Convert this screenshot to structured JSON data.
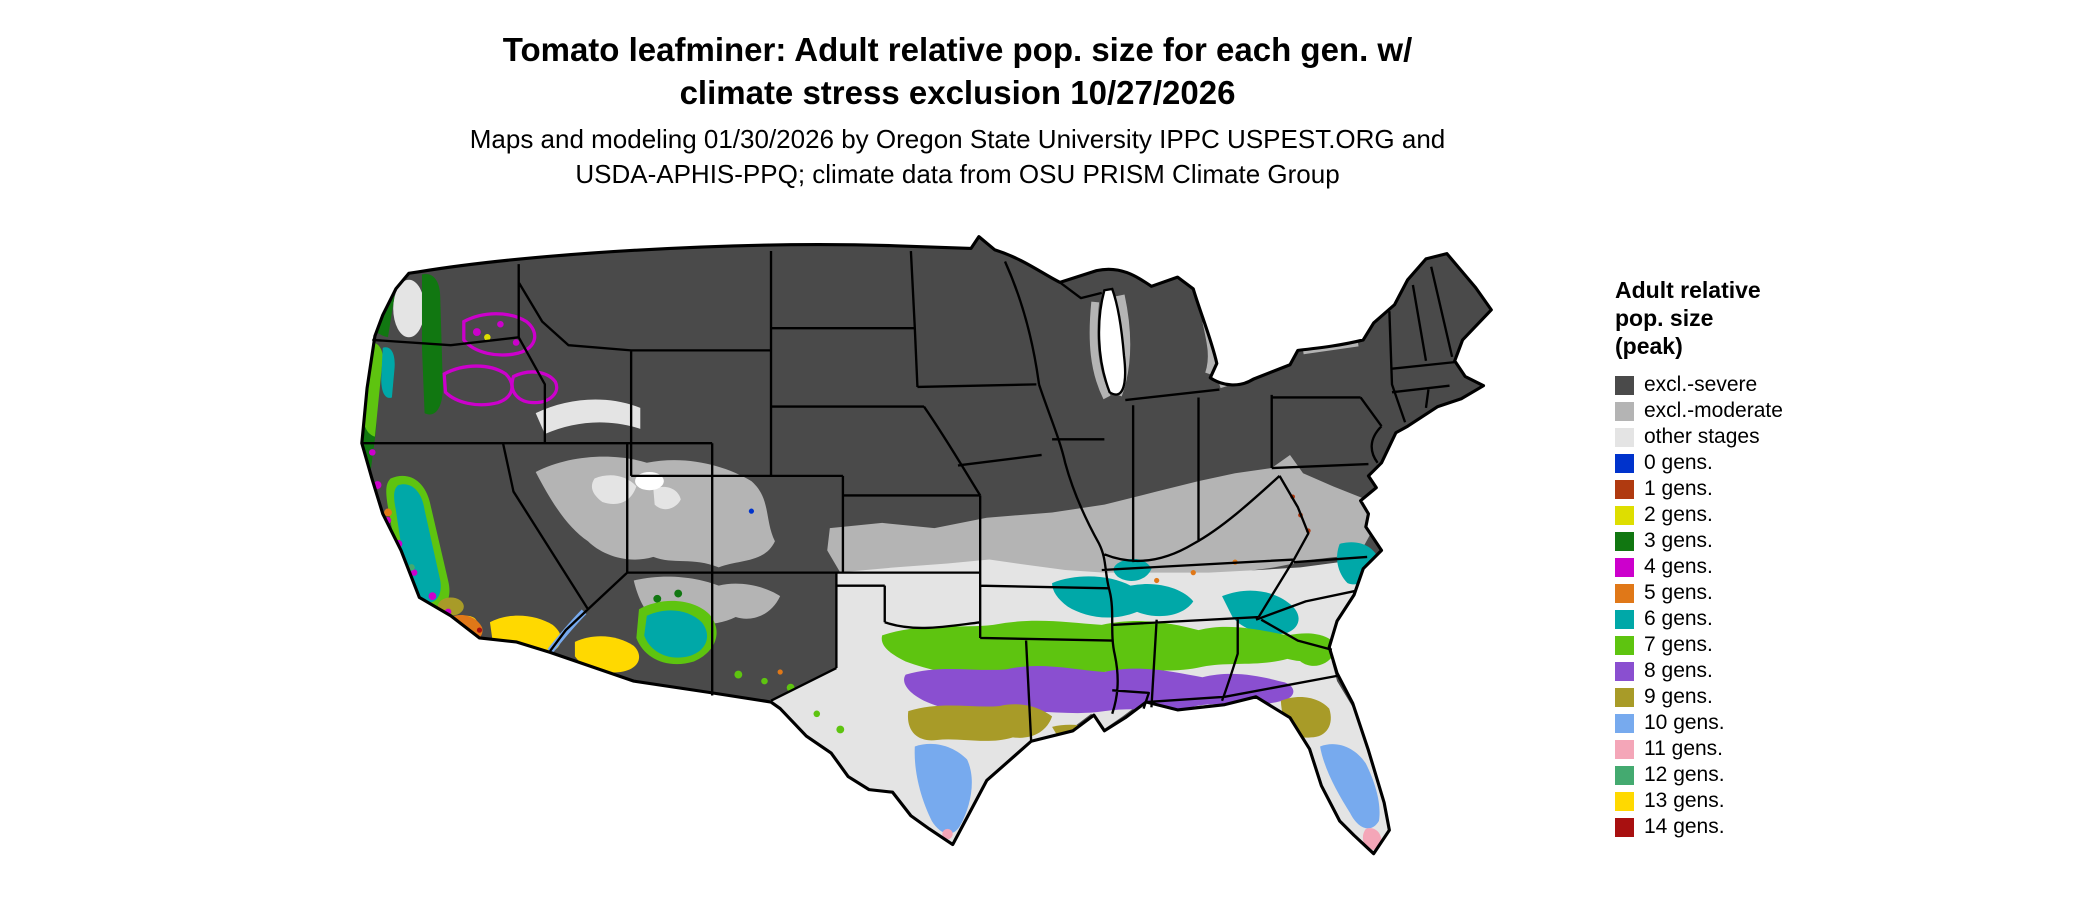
{
  "title": {
    "line1": "Tomato leafminer: Adult relative pop. size for each gen. w/",
    "line2": "climate stress exclusion 10/27/2026"
  },
  "subtitle": {
    "line1": "Maps and modeling 01/30/2026 by Oregon State University IPPC USPEST.ORG and",
    "line2": "USDA-APHIS-PPQ; climate data from OSU PRISM Climate Group"
  },
  "colors": {
    "excl_severe": "#4a4a4a",
    "excl_moderate": "#b4b4b4",
    "other_stages": "#e4e4e4",
    "gens0": "#0033cc",
    "gens1": "#b03a10",
    "gens2": "#dede00",
    "gens3": "#117711",
    "gens4": "#cc00cc",
    "gens5": "#e07818",
    "gens6": "#00a8a8",
    "gens7": "#5ec410",
    "gens8": "#8a4fd0",
    "gens9": "#a89b28",
    "gens10": "#77aaee",
    "gens11": "#f4a6b8",
    "gens12": "#44aa70",
    "gens13": "#ffd900",
    "gens14": "#a81010",
    "map_border": "#000000",
    "lake_fill": "#ffffff"
  },
  "legend": {
    "title_lines": [
      "Adult relative",
      "pop. size",
      "(peak)"
    ],
    "entries": [
      {
        "label": "excl.-severe",
        "color_key": "excl_severe"
      },
      {
        "label": "excl.-moderate",
        "color_key": "excl_moderate"
      },
      {
        "label": "other stages",
        "color_key": "other_stages"
      },
      {
        "label": "0 gens.",
        "color_key": "gens0"
      },
      {
        "label": "1 gens.",
        "color_key": "gens1"
      },
      {
        "label": "2 gens.",
        "color_key": "gens2"
      },
      {
        "label": "3 gens.",
        "color_key": "gens3"
      },
      {
        "label": "4 gens.",
        "color_key": "gens4"
      },
      {
        "label": "5 gens.",
        "color_key": "gens5"
      },
      {
        "label": "6 gens.",
        "color_key": "gens6"
      },
      {
        "label": "7 gens.",
        "color_key": "gens7"
      },
      {
        "label": "8 gens.",
        "color_key": "gens8"
      },
      {
        "label": "9 gens.",
        "color_key": "gens9"
      },
      {
        "label": "10 gens.",
        "color_key": "gens10"
      },
      {
        "label": "11 gens.",
        "color_key": "gens11"
      },
      {
        "label": "12 gens.",
        "color_key": "gens12"
      },
      {
        "label": "13 gens.",
        "color_key": "gens13"
      },
      {
        "label": "14 gens.",
        "color_key": "gens14"
      }
    ]
  }
}
